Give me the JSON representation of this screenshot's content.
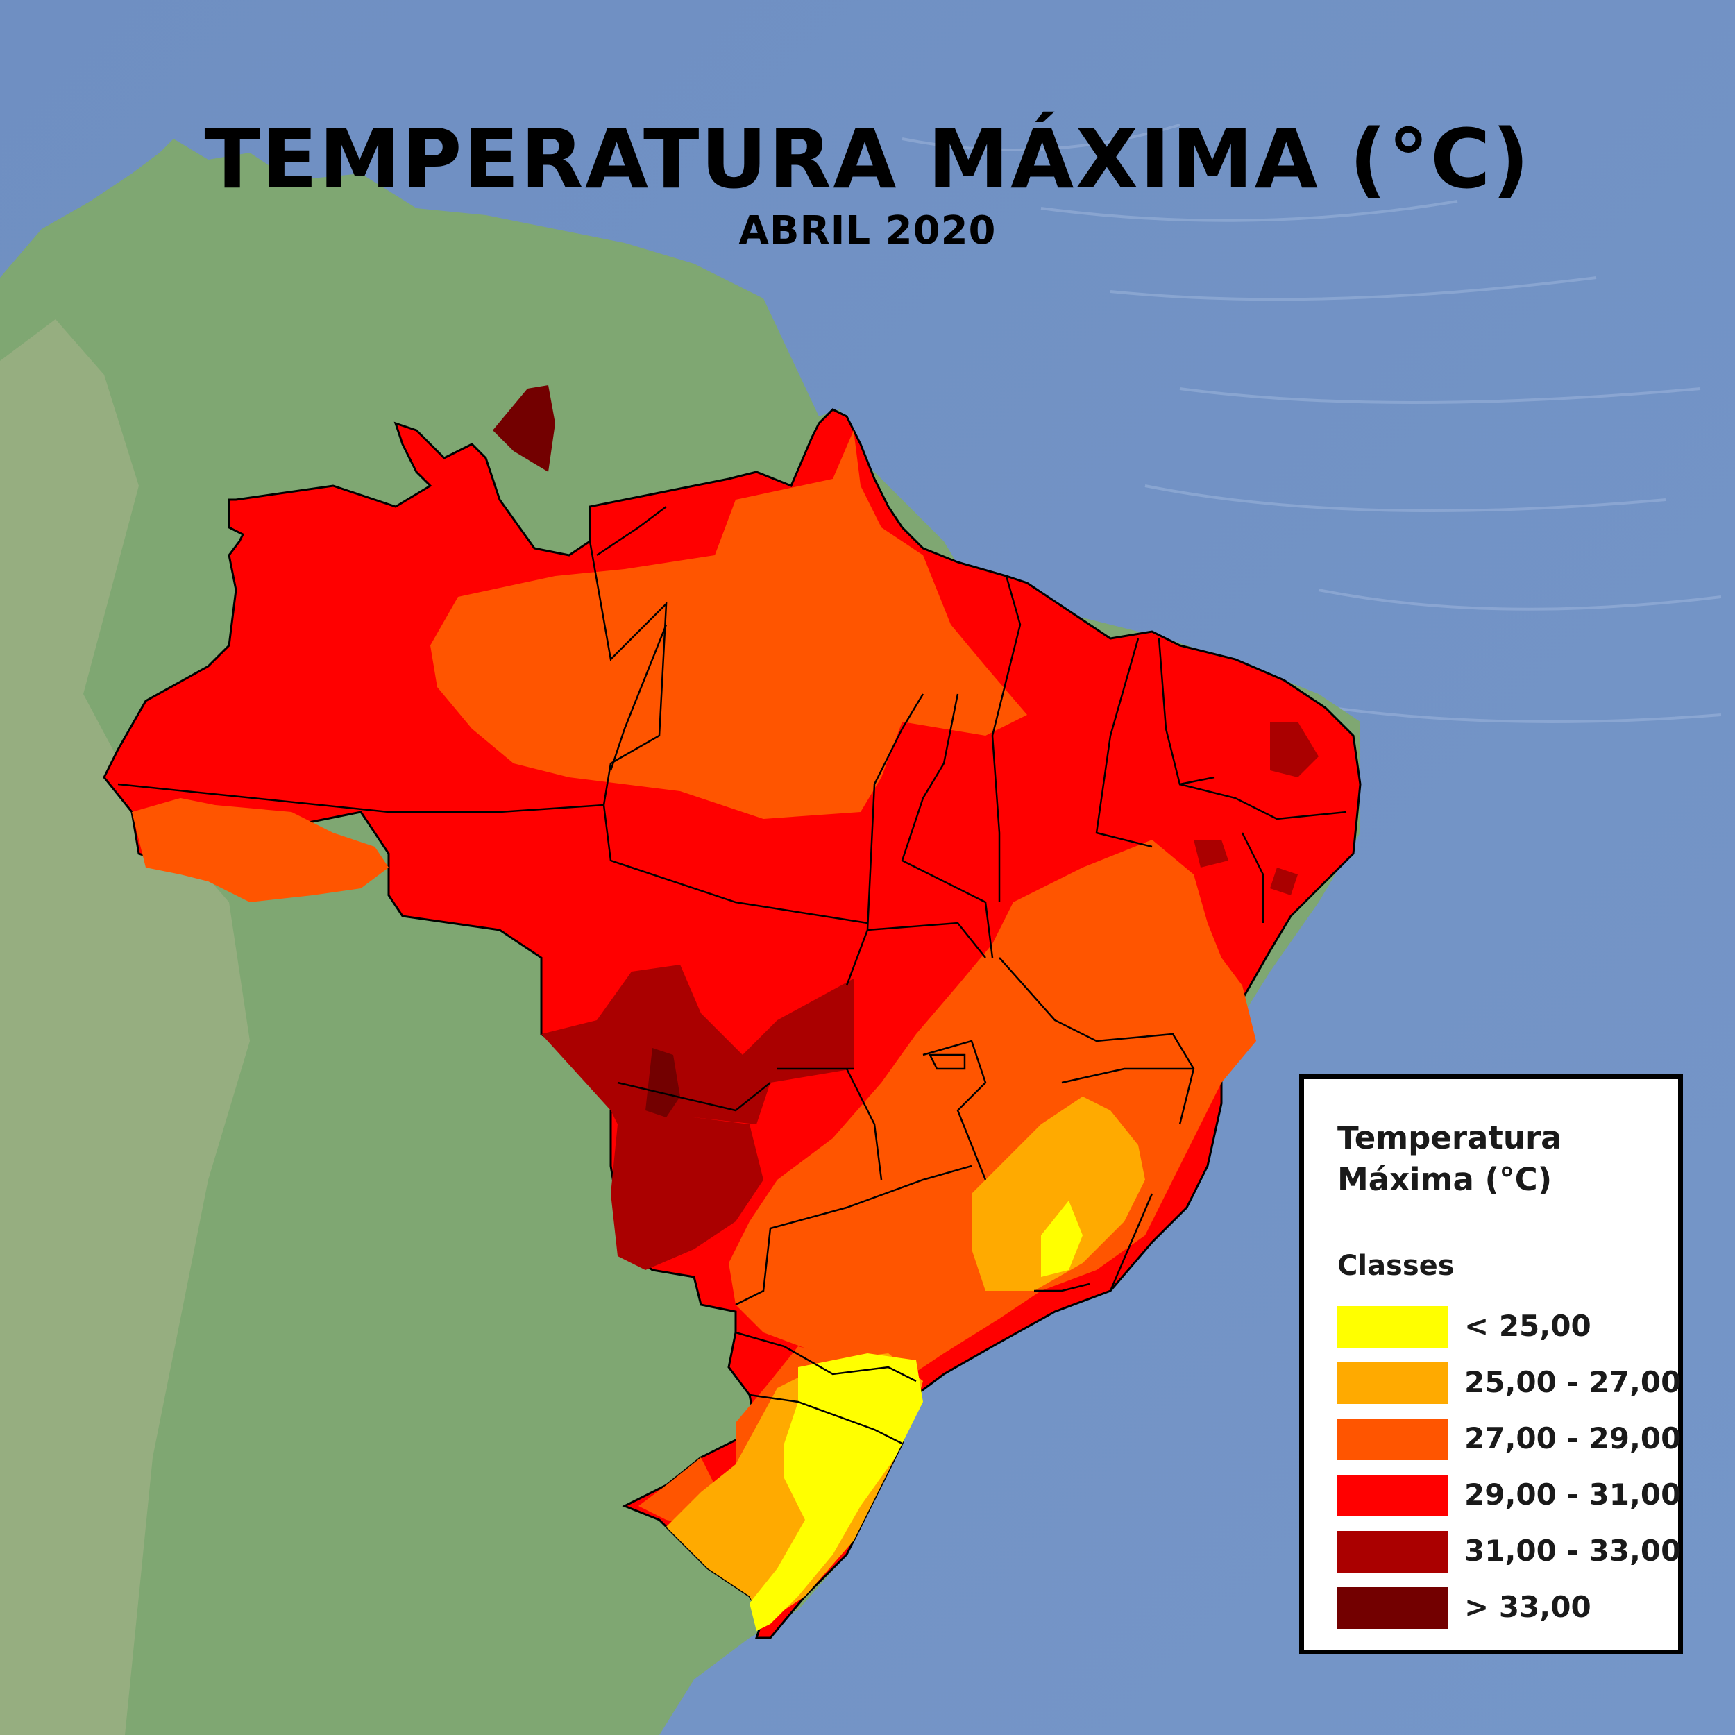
{
  "title": "TEMPERATURA MÁXIMA (°C)",
  "subtitle": "ABRIL 2020",
  "legend": {
    "title_line1": "Temperatura",
    "title_line2": "Máxima (°C)",
    "subtitle": "Classes",
    "items": [
      {
        "label": "< 25,00",
        "color": "#ffff00"
      },
      {
        "label": "25,00 - 27,00",
        "color": "#ffaa00"
      },
      {
        "label": "27,00 - 29,00",
        "color": "#ff5500"
      },
      {
        "label": "29,00 - 31,00",
        "color": "#ff0000"
      },
      {
        "label": "31,00 - 33,00",
        "color": "#aa0000"
      },
      {
        "label": "> 33,00",
        "color": "#730000"
      }
    ]
  },
  "colors": {
    "ocean": "#7090c0",
    "land": "#7fa772"
  }
}
